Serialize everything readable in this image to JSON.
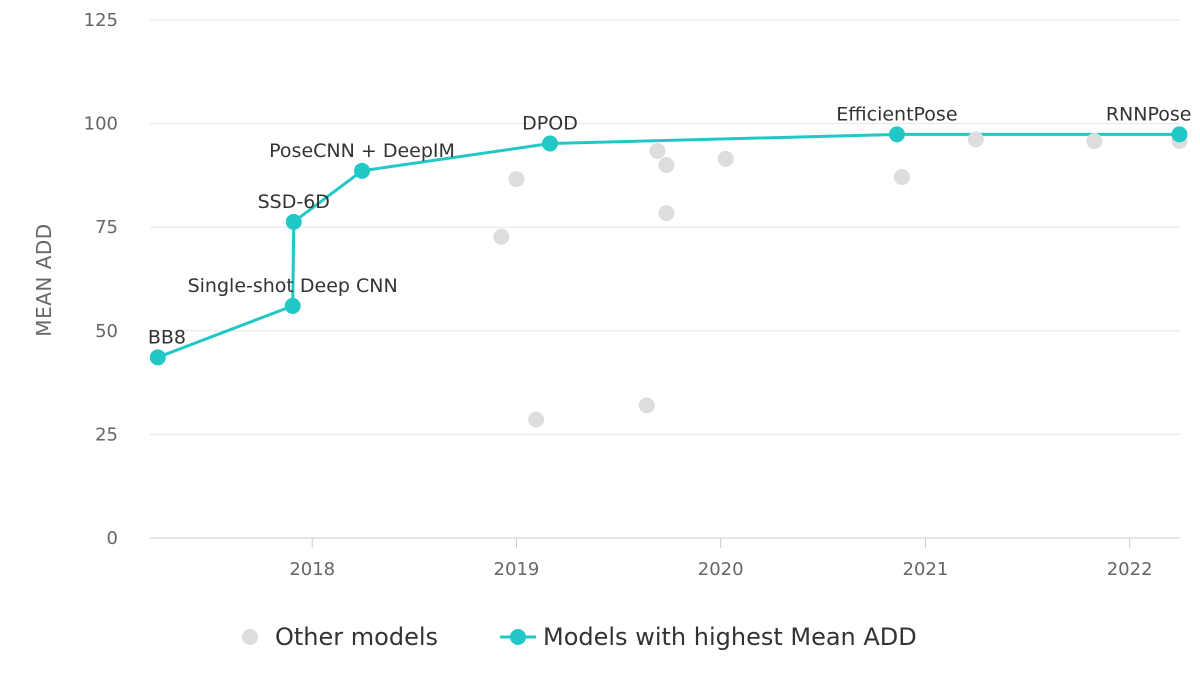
{
  "chart_data": {
    "type": "scatter",
    "ylabel": "MEAN ADD",
    "xlabel": "",
    "title": "",
    "ylim": [
      0,
      125
    ],
    "yticks": [
      0,
      25,
      50,
      75,
      100,
      125
    ],
    "xlim": [
      "2017-03-17",
      "2022-04-01"
    ],
    "xticks": [
      "2018",
      "2019",
      "2020",
      "2021",
      "2022"
    ],
    "grid": true,
    "legend": "bottom",
    "series": [
      {
        "name": "Other models",
        "color": "#dddddd",
        "points": [
          {
            "x": "2018-12-05",
            "y": 72.7
          },
          {
            "x": "2019-01-01",
            "y": 86.6
          },
          {
            "x": "2019-02-05",
            "y": 28.6
          },
          {
            "x": "2019-08-22",
            "y": 32.0
          },
          {
            "x": "2019-09-10",
            "y": 93.4
          },
          {
            "x": "2019-09-26",
            "y": 90.0
          },
          {
            "x": "2019-09-26",
            "y": 78.4
          },
          {
            "x": "2020-01-10",
            "y": 91.5
          },
          {
            "x": "2020-11-20",
            "y": 87.1
          },
          {
            "x": "2021-04-01",
            "y": 96.2
          },
          {
            "x": "2021-10-30",
            "y": 95.8
          },
          {
            "x": "2022-03-31",
            "y": 95.8
          }
        ]
      },
      {
        "name": "Models with highest Mean ADD",
        "color": "#21c8c6",
        "points": [
          {
            "x": "2017-03-31",
            "y": 43.6,
            "label": "BB8"
          },
          {
            "x": "2017-11-27",
            "y": 56.0,
            "label": "Single-shot Deep CNN"
          },
          {
            "x": "2017-11-29",
            "y": 76.3,
            "label": "SSD-6D"
          },
          {
            "x": "2018-03-31",
            "y": 88.6,
            "label": "PoseCNN + DeepIM"
          },
          {
            "x": "2019-03-02",
            "y": 95.2,
            "label": "DPOD"
          },
          {
            "x": "2020-11-11",
            "y": 97.4,
            "label": "EfficientPose"
          },
          {
            "x": "2022-03-31",
            "y": 97.4,
            "label": "RNNPose"
          }
        ]
      }
    ]
  }
}
